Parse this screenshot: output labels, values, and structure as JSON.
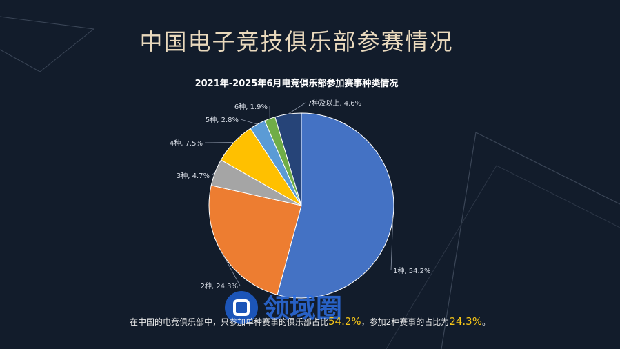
{
  "page_title": "中国电子竞技俱乐部参赛情况",
  "summary": {
    "prefix": "在中国的电竞俱乐部中，只参加单种赛事的俱乐部占比",
    "value1": "54.2%",
    "middle": "，参加2种赛事的占比为",
    "value2": "24.3%",
    "suffix": "。"
  },
  "watermark_text": "领域圈",
  "chart_data": {
    "type": "pie",
    "title": "2021年-2025年6月电竞俱乐部参加赛事种类情况",
    "slices": [
      {
        "label": "1种",
        "value": 54.2,
        "display": "1种, 54.2%",
        "color": "#4472c4"
      },
      {
        "label": "2种",
        "value": 24.3,
        "display": "2种, 24.3%",
        "color": "#ed7d31"
      },
      {
        "label": "3种",
        "value": 4.7,
        "display": "3种, 4.7%",
        "color": "#a5a5a5"
      },
      {
        "label": "4种",
        "value": 7.5,
        "display": "4种, 7.5%",
        "color": "#ffc000"
      },
      {
        "label": "5种",
        "value": 2.8,
        "display": "5种, 2.8%",
        "color": "#5b9bd5"
      },
      {
        "label": "6种",
        "value": 1.9,
        "display": "6种, 1.9%",
        "color": "#70ad47"
      },
      {
        "label": "7种及以上",
        "value": 4.6,
        "display": "7种及以上, 4.6%",
        "color": "#264478"
      }
    ],
    "legend": "none"
  }
}
